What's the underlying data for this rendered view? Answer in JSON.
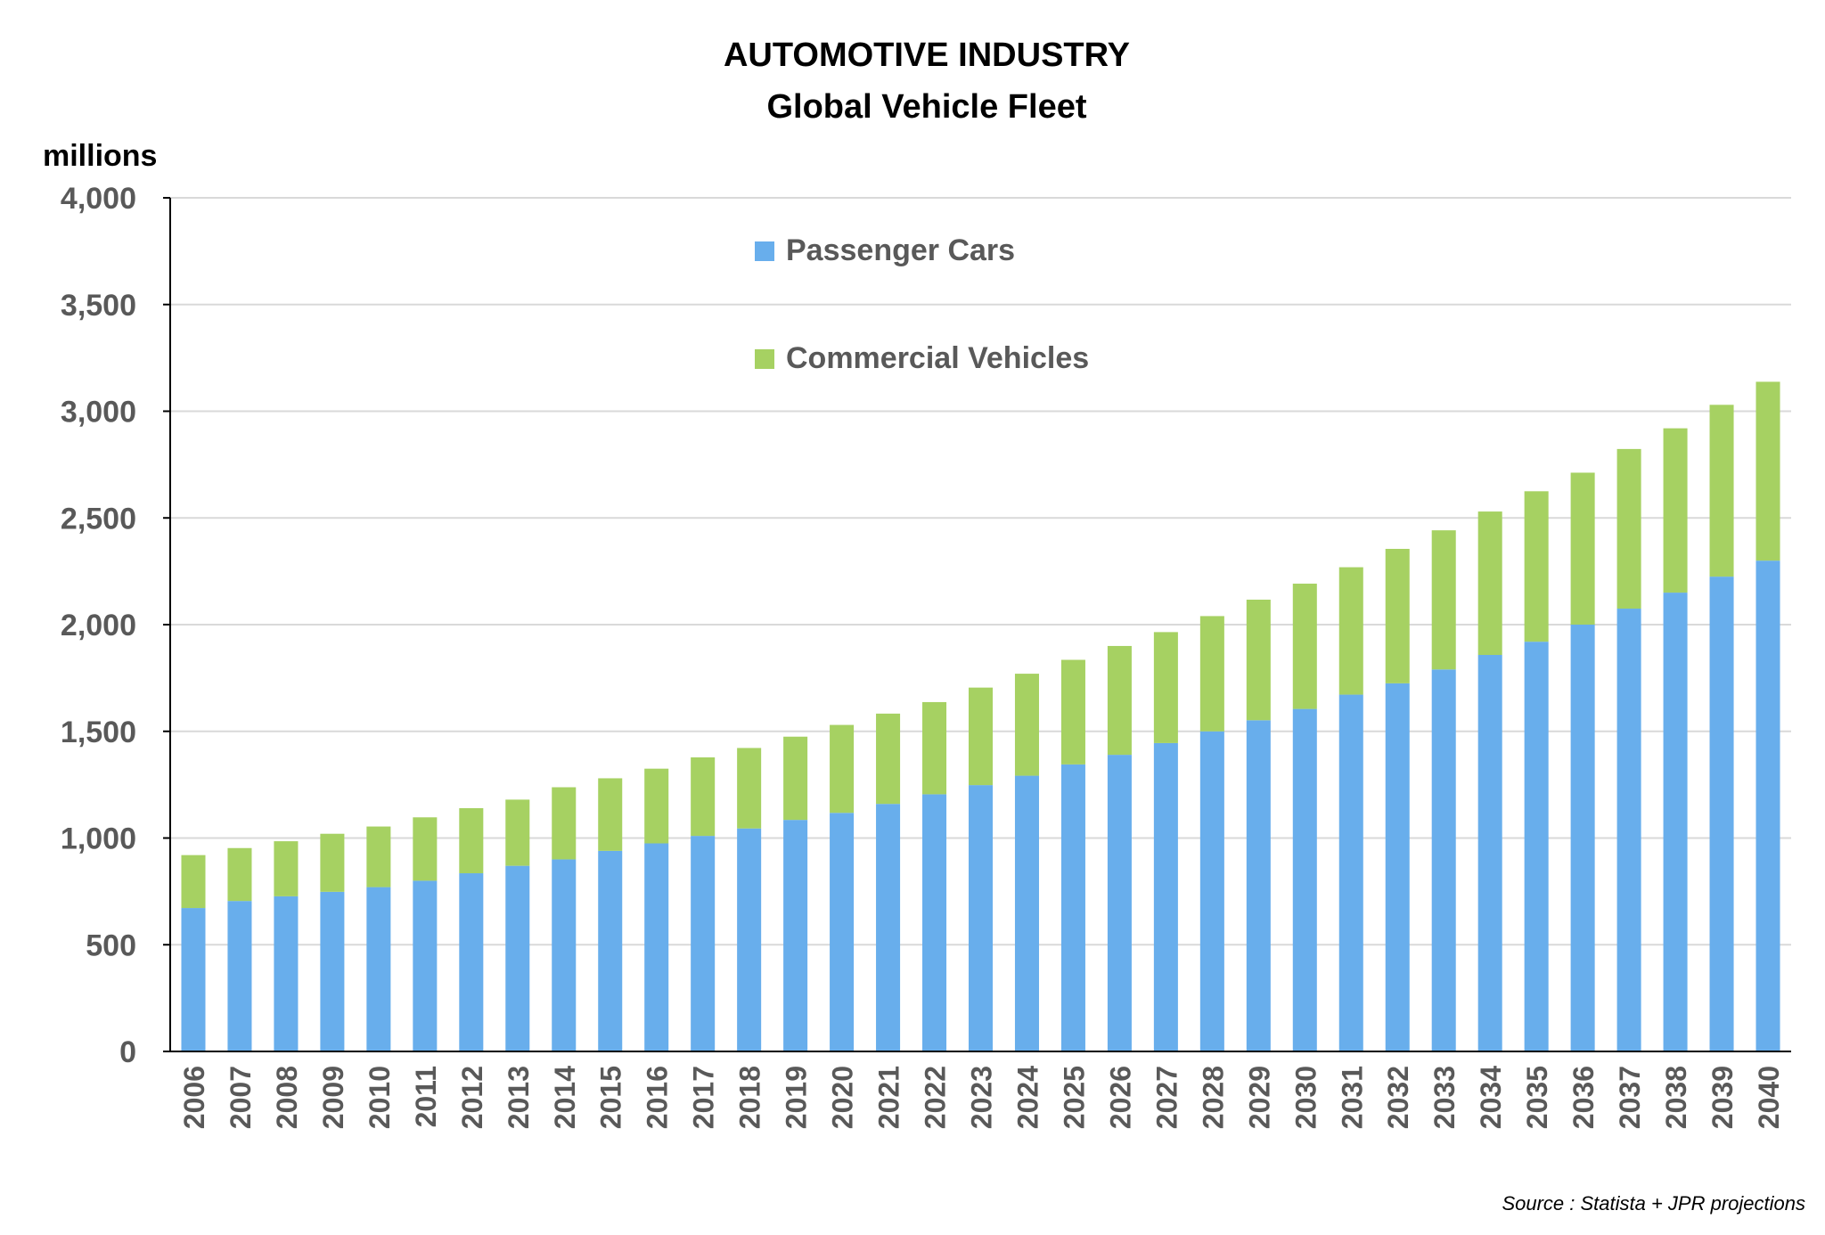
{
  "colors": {
    "passenger": "#68AEEC",
    "commercial": "#A6D162",
    "grid": "#D9D9D9",
    "axis": "#000000",
    "tick_text": "#595959"
  },
  "source_note": "Source : Statista + JPR projections",
  "chart_data": {
    "type": "bar",
    "stacked": true,
    "title": "AUTOMOTIVE INDUSTRY",
    "subtitle": "Global Vehicle Fleet",
    "ylabel": "millions",
    "xlabel": "",
    "ylim": [
      0,
      4000
    ],
    "y_ticks": [
      "0",
      "500",
      "1,000",
      "1,500",
      "2,000",
      "2,500",
      "3,000",
      "3,500",
      "4,000"
    ],
    "y_tick_values": [
      0,
      500,
      1000,
      1500,
      2000,
      2500,
      3000,
      3500,
      4000
    ],
    "grid": true,
    "legend_placement": "top-center",
    "categories": [
      "2006",
      "2007",
      "2008",
      "2009",
      "2010",
      "2011",
      "2012",
      "2013",
      "2014",
      "2015",
      "2016",
      "2017",
      "2018",
      "2019",
      "2020",
      "2021",
      "2022",
      "2023",
      "2024",
      "2025",
      "2026",
      "2027",
      "2028",
      "2029",
      "2030",
      "2031",
      "2032",
      "2033",
      "2034",
      "2035",
      "2036",
      "2037",
      "2038",
      "2039",
      "2040"
    ],
    "series": [
      {
        "name": "Passenger Cars",
        "color": "#68AEEC",
        "values": [
          672,
          705,
          727,
          748,
          770,
          800,
          835,
          870,
          900,
          940,
          975,
          1010,
          1045,
          1085,
          1118,
          1160,
          1205,
          1248,
          1292,
          1345,
          1390,
          1445,
          1500,
          1552,
          1605,
          1672,
          1725,
          1790,
          1858,
          1920,
          2000,
          2075,
          2150,
          2225,
          2300
        ]
      },
      {
        "name": "Commercial Vehicles",
        "color": "#A6D162",
        "values": [
          248,
          248,
          258,
          272,
          284,
          297,
          305,
          310,
          338,
          340,
          350,
          368,
          377,
          390,
          412,
          423,
          432,
          457,
          478,
          490,
          510,
          520,
          540,
          565,
          587,
          597,
          630,
          652,
          672,
          705,
          712,
          748,
          770,
          805,
          838
        ]
      }
    ]
  }
}
